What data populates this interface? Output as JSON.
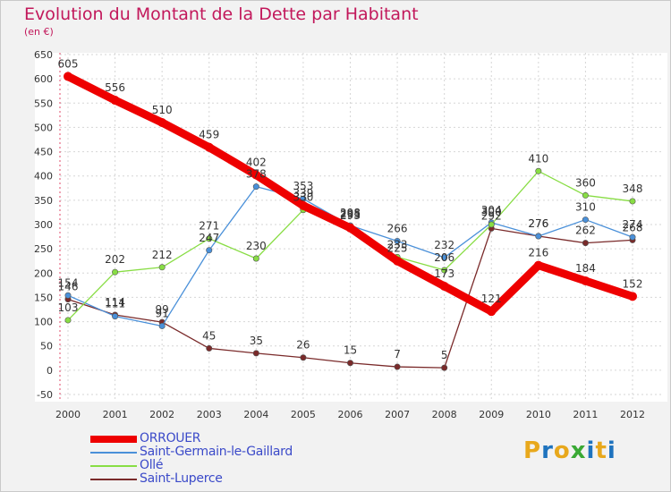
{
  "header": {
    "title": "Evolution du Montant de la Dette par Habitant",
    "subtitle": "(en €)"
  },
  "logo": {
    "letters": [
      "P",
      "r",
      "o",
      "x",
      "i",
      "t",
      "i"
    ],
    "colors": [
      "#e8a81c",
      "#1e73be",
      "#e8a81c",
      "#3aa935",
      "#1e73be",
      "#e8a81c",
      "#1e73be"
    ]
  },
  "chart_data": {
    "type": "line",
    "title": "Evolution du Montant de la Dette par Habitant",
    "ylabel": "(en €)",
    "x": [
      "2000",
      "2001",
      "2002",
      "2003",
      "2004",
      "2005",
      "2006",
      "2007",
      "2008",
      "2009",
      "2010",
      "2011",
      "2012"
    ],
    "ylim": [
      -50,
      650
    ],
    "yticks": [
      -50,
      0,
      50,
      100,
      150,
      200,
      250,
      300,
      350,
      400,
      450,
      500,
      550,
      600,
      650
    ],
    "ytick_labels": [
      "-50",
      "0",
      "50",
      "100",
      "150",
      "200",
      "250",
      "300",
      "350",
      "400",
      "450",
      "500",
      "550",
      "600",
      "650"
    ],
    "grid": true,
    "legend": "bottom-left",
    "series": [
      {
        "name": "ORROUER",
        "color": "#ee0000",
        "values": [
          605,
          556,
          510,
          459,
          402,
          339,
          293,
          225,
          173,
          121,
          216,
          184,
          152
        ],
        "labels": [
          "605",
          "556",
          "510",
          "459",
          "402",
          "339",
          "293",
          "225",
          "173",
          "121",
          "216",
          "184",
          "152"
        ]
      },
      {
        "name": "Saint-Germain-le-Gaillard",
        "color": "#4a90d9",
        "values": [
          154,
          111,
          91,
          247,
          378,
          353,
          298,
          266,
          232,
          304,
          276,
          310,
          274
        ],
        "labels": [
          "154",
          "111",
          "91",
          "247",
          "378",
          "353",
          "298",
          "266",
          "232",
          "304",
          "276",
          "310",
          "274"
        ]
      },
      {
        "name": "Ollé",
        "color": "#88dd44",
        "values": [
          103,
          202,
          212,
          271,
          230,
          330,
          295,
          233,
          206,
          300,
          410,
          360,
          348
        ],
        "labels": [
          "103",
          "202",
          "212",
          "271",
          "230",
          "330",
          "295",
          "233",
          "206",
          "300",
          "410",
          "360",
          "348"
        ]
      },
      {
        "name": "Saint-Luperce",
        "color": "#7a2a2a",
        "values": [
          146,
          114,
          99,
          45,
          35,
          26,
          15,
          7,
          5,
          292,
          276,
          262,
          268
        ],
        "labels": [
          "146",
          "114",
          "99",
          "45",
          "35",
          "26",
          "15",
          "7",
          "5",
          "292",
          "276",
          "262",
          "268"
        ]
      }
    ]
  }
}
